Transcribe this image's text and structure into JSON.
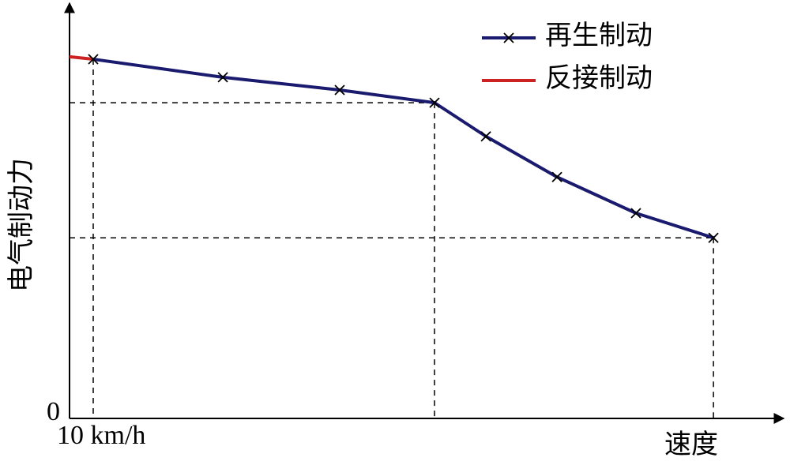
{
  "chart_data": {
    "type": "line",
    "x_label": "速度",
    "y_label": "电气制动力",
    "xlim": [
      0,
      300
    ],
    "ylim": [
      0,
      100
    ],
    "xticks": [
      {
        "value": 10,
        "label": "10 km/h"
      }
    ],
    "yticks": [
      0
    ],
    "legend": "top-right",
    "series": [
      {
        "name": "再生制动",
        "color": "#1a1a6e",
        "marker": "x",
        "x": [
          10,
          64.7,
          114,
          154,
          175.7,
          205.7,
          239,
          271.7
        ],
        "values": [
          87.5,
          83.1,
          80,
          76.9,
          68.7,
          58.8,
          50,
          44
        ]
      },
      {
        "name": "反接制动",
        "color": "#cc2222",
        "x": [
          0,
          10
        ],
        "values": [
          88.1,
          87.5
        ]
      }
    ]
  }
}
